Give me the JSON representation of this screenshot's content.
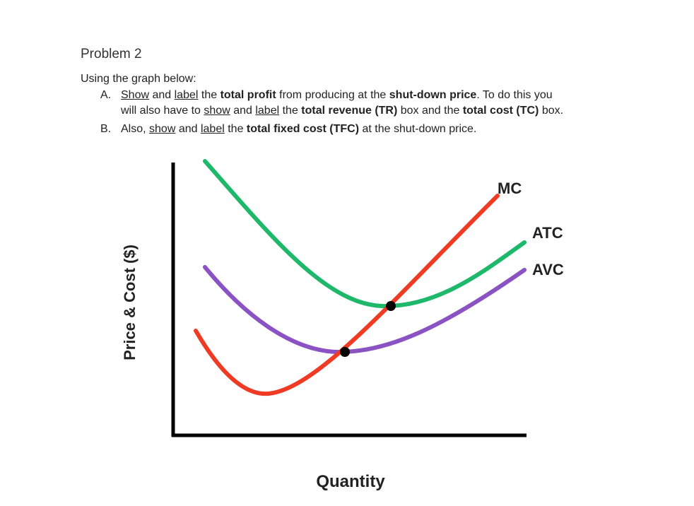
{
  "problem": {
    "title": "Problem 2",
    "intro": "Using the graph below:"
  },
  "instructions": [
    {
      "marker": "A.",
      "line1": [
        {
          "t": "Show",
          "u": true
        },
        {
          "t": " and "
        },
        {
          "t": "label",
          "u": true
        },
        {
          "t": " the "
        },
        {
          "t": "total profit",
          "b": true
        },
        {
          "t": " from producing at the "
        },
        {
          "t": "shut-down price",
          "b": true
        },
        {
          "t": ". To do this you"
        }
      ],
      "line2": [
        {
          "t": "will also have to "
        },
        {
          "t": "show",
          "u": true
        },
        {
          "t": " and "
        },
        {
          "t": "label",
          "u": true
        },
        {
          "t": " the "
        },
        {
          "t": "total revenue (TR)",
          "b": true
        },
        {
          "t": " box and the "
        },
        {
          "t": "total cost (TC)",
          "b": true
        },
        {
          "t": " box."
        }
      ]
    },
    {
      "marker": "B.",
      "line1": [
        {
          "t": "Also, "
        },
        {
          "t": "show",
          "u": true
        },
        {
          "t": " and "
        },
        {
          "t": "label",
          "u": true
        },
        {
          "t": " the "
        },
        {
          "t": "total fixed cost (TFC)",
          "b": true
        },
        {
          "t": " at the shut-down price."
        }
      ]
    }
  ],
  "graph": {
    "y_axis_label": "Price & Cost ($)",
    "x_axis_label": "Quantity",
    "curves": {
      "mc": {
        "label": "MC",
        "color": "#ef3b24"
      },
      "atc": {
        "label": "ATC",
        "color": "#1eb86a"
      },
      "avc": {
        "label": "AVC",
        "color": "#8a52c2"
      }
    },
    "axis_color": "#000000",
    "point_color": "#000000"
  }
}
